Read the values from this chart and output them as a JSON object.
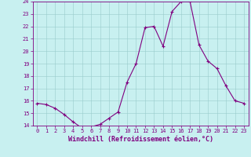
{
  "x": [
    0,
    1,
    2,
    3,
    4,
    5,
    6,
    7,
    8,
    9,
    10,
    11,
    12,
    13,
    14,
    15,
    16,
    17,
    18,
    19,
    20,
    21,
    22,
    23
  ],
  "y": [
    15.8,
    15.7,
    15.4,
    14.9,
    14.3,
    13.8,
    13.9,
    14.1,
    14.6,
    15.1,
    17.5,
    19.0,
    21.9,
    22.0,
    20.4,
    23.2,
    24.0,
    24.0,
    20.5,
    19.2,
    18.6,
    17.2,
    16.0,
    15.8
  ],
  "line_color": "#800080",
  "marker_color": "#800080",
  "bg_color": "#c8f0f0",
  "grid_color": "#99cccc",
  "xlabel": "Windchill (Refroidissement éolien,°C)",
  "xlabel_color": "#800080",
  "tick_color": "#800080",
  "ylim": [
    14,
    24
  ],
  "xlim": [
    -0.5,
    23.5
  ],
  "yticks": [
    14,
    15,
    16,
    17,
    18,
    19,
    20,
    21,
    22,
    23,
    24
  ],
  "xticks": [
    0,
    1,
    2,
    3,
    4,
    5,
    6,
    7,
    8,
    9,
    10,
    11,
    12,
    13,
    14,
    15,
    16,
    17,
    18,
    19,
    20,
    21,
    22,
    23
  ],
  "spine_color": "#800080",
  "font_family": "monospace",
  "tick_fontsize": 5,
  "xlabel_fontsize": 6,
  "linewidth": 0.8,
  "markersize": 3
}
